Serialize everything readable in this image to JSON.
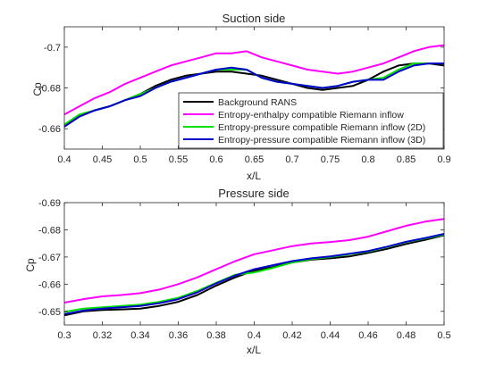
{
  "chart_data": [
    {
      "type": "line",
      "title": "Suction side",
      "xlabel": "x/L",
      "ylabel": "Cp",
      "xlim": [
        0.4,
        0.9
      ],
      "ylim": [
        -0.65,
        -0.71
      ],
      "y_reversed": true,
      "grid": false,
      "legend_position": "lower-right",
      "xticks": [
        "0.4",
        "0.45",
        "0.5",
        "0.55",
        "0.6",
        "0.65",
        "0.7",
        "0.75",
        "0.8",
        "0.85",
        "0.9"
      ],
      "yticks": [
        "-0.66",
        "-0.68",
        "-0.7"
      ],
      "x": [
        0.4,
        0.42,
        0.44,
        0.46,
        0.48,
        0.5,
        0.52,
        0.54,
        0.56,
        0.58,
        0.6,
        0.62,
        0.64,
        0.66,
        0.68,
        0.7,
        0.72,
        0.74,
        0.76,
        0.78,
        0.8,
        0.82,
        0.84,
        0.86,
        0.88,
        0.9
      ],
      "series": [
        {
          "name": "Background RANS",
          "color": "#000000",
          "values": [
            -0.662,
            -0.666,
            -0.669,
            -0.671,
            -0.674,
            -0.677,
            -0.681,
            -0.684,
            -0.686,
            -0.687,
            -0.688,
            -0.688,
            -0.687,
            -0.686,
            -0.684,
            -0.682,
            -0.68,
            -0.679,
            -0.68,
            -0.681,
            -0.684,
            -0.688,
            -0.691,
            -0.692,
            -0.692,
            -0.691
          ]
        },
        {
          "name": "Entropy-enthalpy compatible Riemann inflow",
          "color": "#ff00ff",
          "values": [
            -0.667,
            -0.671,
            -0.675,
            -0.678,
            -0.682,
            -0.685,
            -0.688,
            -0.691,
            -0.693,
            -0.695,
            -0.697,
            -0.697,
            -0.698,
            -0.695,
            -0.693,
            -0.691,
            -0.689,
            -0.688,
            -0.687,
            -0.688,
            -0.69,
            -0.692,
            -0.695,
            -0.698,
            -0.7,
            -0.701
          ]
        },
        {
          "name": "Entropy-pressure compatible Riemann inflow (2D)",
          "color": "#00e000",
          "values": [
            -0.662,
            -0.667,
            -0.669,
            -0.671,
            -0.674,
            -0.677,
            -0.68,
            -0.683,
            -0.685,
            -0.687,
            -0.689,
            -0.689,
            -0.689,
            -0.685,
            -0.683,
            -0.682,
            -0.681,
            -0.68,
            -0.681,
            -0.683,
            -0.684,
            -0.685,
            -0.689,
            -0.692,
            -0.692,
            -0.692
          ]
        },
        {
          "name": "Entropy-pressure compatible Riemann inflow (3D)",
          "color": "#0000cc",
          "values": [
            -0.661,
            -0.666,
            -0.669,
            -0.671,
            -0.674,
            -0.676,
            -0.68,
            -0.683,
            -0.685,
            -0.687,
            -0.689,
            -0.69,
            -0.689,
            -0.685,
            -0.683,
            -0.682,
            -0.681,
            -0.68,
            -0.681,
            -0.683,
            -0.684,
            -0.684,
            -0.688,
            -0.691,
            -0.692,
            -0.692
          ]
        }
      ]
    },
    {
      "type": "line",
      "title": "Pressure side",
      "xlabel": "x/L",
      "ylabel": "Cp",
      "xlim": [
        0.3,
        0.5
      ],
      "ylim": [
        -0.645,
        -0.69
      ],
      "y_reversed": true,
      "grid": false,
      "xticks": [
        "0.3",
        "0.32",
        "0.34",
        "0.36",
        "0.38",
        "0.4",
        "0.42",
        "0.44",
        "0.46",
        "0.48",
        "0.5"
      ],
      "yticks": [
        "-0.65",
        "-0.66",
        "-0.67",
        "-0.68",
        "-0.69"
      ],
      "x": [
        0.3,
        0.31,
        0.32,
        0.33,
        0.34,
        0.35,
        0.36,
        0.37,
        0.38,
        0.39,
        0.4,
        0.41,
        0.42,
        0.43,
        0.44,
        0.45,
        0.46,
        0.47,
        0.48,
        0.49,
        0.5
      ],
      "series": [
        {
          "name": "Background RANS",
          "color": "#000000",
          "values": [
            -0.6485,
            -0.65,
            -0.6505,
            -0.6507,
            -0.651,
            -0.652,
            -0.6535,
            -0.656,
            -0.6595,
            -0.6625,
            -0.665,
            -0.6663,
            -0.668,
            -0.669,
            -0.6695,
            -0.6702,
            -0.6715,
            -0.673,
            -0.6748,
            -0.6763,
            -0.678
          ]
        },
        {
          "name": "Entropy-enthalpy compatible Riemann inflow",
          "color": "#ff00ff",
          "values": [
            -0.6532,
            -0.6545,
            -0.6555,
            -0.656,
            -0.6567,
            -0.658,
            -0.66,
            -0.6625,
            -0.6655,
            -0.6685,
            -0.671,
            -0.6725,
            -0.674,
            -0.675,
            -0.6755,
            -0.6762,
            -0.6775,
            -0.6795,
            -0.6815,
            -0.683,
            -0.684
          ]
        },
        {
          "name": "Entropy-pressure compatible Riemann inflow (2D)",
          "color": "#00e000",
          "values": [
            -0.6498,
            -0.651,
            -0.6515,
            -0.652,
            -0.6525,
            -0.6535,
            -0.655,
            -0.6575,
            -0.6605,
            -0.6635,
            -0.6643,
            -0.666,
            -0.668,
            -0.6692,
            -0.67,
            -0.671,
            -0.672,
            -0.6737,
            -0.6755,
            -0.6768,
            -0.6782
          ]
        },
        {
          "name": "Entropy-pressure compatible Riemann inflow (3D)",
          "color": "#0000cc",
          "values": [
            -0.649,
            -0.6503,
            -0.651,
            -0.6515,
            -0.652,
            -0.653,
            -0.6545,
            -0.657,
            -0.6603,
            -0.6632,
            -0.6655,
            -0.667,
            -0.6685,
            -0.6695,
            -0.6702,
            -0.6712,
            -0.6722,
            -0.6738,
            -0.6756,
            -0.677,
            -0.6785
          ]
        }
      ]
    }
  ]
}
